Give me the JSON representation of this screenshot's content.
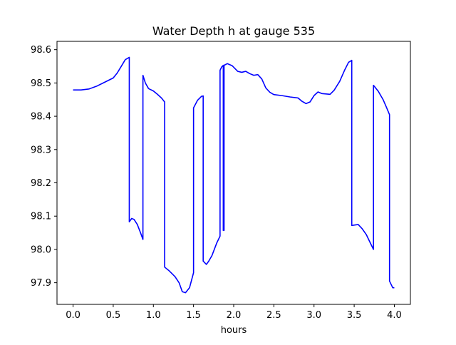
{
  "chart_data": {
    "type": "line",
    "title": "Water Depth h at gauge 535",
    "xlabel": "hours",
    "ylabel": "",
    "xlim": [
      -0.2,
      4.2
    ],
    "ylim": [
      97.835,
      98.625
    ],
    "xticks": [
      0.0,
      0.5,
      1.0,
      1.5,
      2.0,
      2.5,
      3.0,
      3.5,
      4.0
    ],
    "xtick_labels": [
      "0.0",
      "0.5",
      "1.0",
      "1.5",
      "2.0",
      "2.5",
      "3.0",
      "3.5",
      "4.0"
    ],
    "yticks": [
      97.9,
      98.0,
      98.1,
      98.2,
      98.3,
      98.4,
      98.5,
      98.6
    ],
    "ytick_labels": [
      "97.9",
      "98.0",
      "98.1",
      "98.2",
      "98.3",
      "98.4",
      "98.5",
      "98.6"
    ],
    "grid": false,
    "series": [
      {
        "color": "#0000ff",
        "points": [
          [
            0.0,
            98.479
          ],
          [
            0.1,
            98.479
          ],
          [
            0.2,
            98.482
          ],
          [
            0.3,
            98.491
          ],
          [
            0.4,
            98.503
          ],
          [
            0.5,
            98.515
          ],
          [
            0.55,
            98.53
          ],
          [
            0.6,
            98.55
          ],
          [
            0.65,
            98.57
          ],
          [
            0.7,
            98.577
          ],
          [
            0.7,
            98.083
          ],
          [
            0.73,
            98.093
          ],
          [
            0.76,
            98.09
          ],
          [
            0.8,
            98.075
          ],
          [
            0.84,
            98.05
          ],
          [
            0.87,
            98.03
          ],
          [
            0.87,
            98.523
          ],
          [
            0.9,
            98.5
          ],
          [
            0.94,
            98.483
          ],
          [
            1.0,
            98.476
          ],
          [
            1.05,
            98.466
          ],
          [
            1.1,
            98.455
          ],
          [
            1.14,
            98.443
          ],
          [
            1.14,
            97.947
          ],
          [
            1.2,
            97.935
          ],
          [
            1.27,
            97.918
          ],
          [
            1.32,
            97.9
          ],
          [
            1.36,
            97.873
          ],
          [
            1.4,
            97.87
          ],
          [
            1.45,
            97.885
          ],
          [
            1.5,
            97.93
          ],
          [
            1.5,
            98.425
          ],
          [
            1.55,
            98.448
          ],
          [
            1.6,
            98.46
          ],
          [
            1.62,
            98.461
          ],
          [
            1.62,
            97.965
          ],
          [
            1.66,
            97.955
          ],
          [
            1.69,
            97.965
          ],
          [
            1.73,
            97.982
          ],
          [
            1.79,
            98.02
          ],
          [
            1.83,
            98.04
          ],
          [
            1.83,
            98.538
          ],
          [
            1.85,
            98.548
          ],
          [
            1.87,
            98.553
          ],
          [
            1.87,
            98.057
          ],
          [
            1.88,
            98.057
          ],
          [
            1.88,
            98.553
          ],
          [
            1.92,
            98.558
          ],
          [
            1.98,
            98.552
          ],
          [
            2.05,
            98.535
          ],
          [
            2.1,
            98.532
          ],
          [
            2.15,
            98.535
          ],
          [
            2.2,
            98.528
          ],
          [
            2.25,
            98.523
          ],
          [
            2.3,
            98.525
          ],
          [
            2.35,
            98.512
          ],
          [
            2.4,
            98.485
          ],
          [
            2.45,
            98.472
          ],
          [
            2.5,
            98.465
          ],
          [
            2.6,
            98.462
          ],
          [
            2.7,
            98.458
          ],
          [
            2.8,
            98.455
          ],
          [
            2.85,
            98.445
          ],
          [
            2.9,
            98.438
          ],
          [
            2.95,
            98.443
          ],
          [
            3.0,
            98.462
          ],
          [
            3.05,
            98.473
          ],
          [
            3.1,
            98.468
          ],
          [
            3.2,
            98.466
          ],
          [
            3.25,
            98.478
          ],
          [
            3.32,
            98.505
          ],
          [
            3.38,
            98.538
          ],
          [
            3.43,
            98.562
          ],
          [
            3.47,
            98.568
          ],
          [
            3.47,
            98.072
          ],
          [
            3.55,
            98.075
          ],
          [
            3.6,
            98.062
          ],
          [
            3.65,
            98.045
          ],
          [
            3.7,
            98.02
          ],
          [
            3.74,
            98.0
          ],
          [
            3.74,
            98.493
          ],
          [
            3.8,
            98.475
          ],
          [
            3.86,
            98.45
          ],
          [
            3.9,
            98.428
          ],
          [
            3.94,
            98.405
          ],
          [
            3.94,
            97.905
          ],
          [
            3.97,
            97.89
          ],
          [
            3.98,
            97.885
          ],
          [
            4.0,
            97.885
          ]
        ]
      }
    ]
  }
}
